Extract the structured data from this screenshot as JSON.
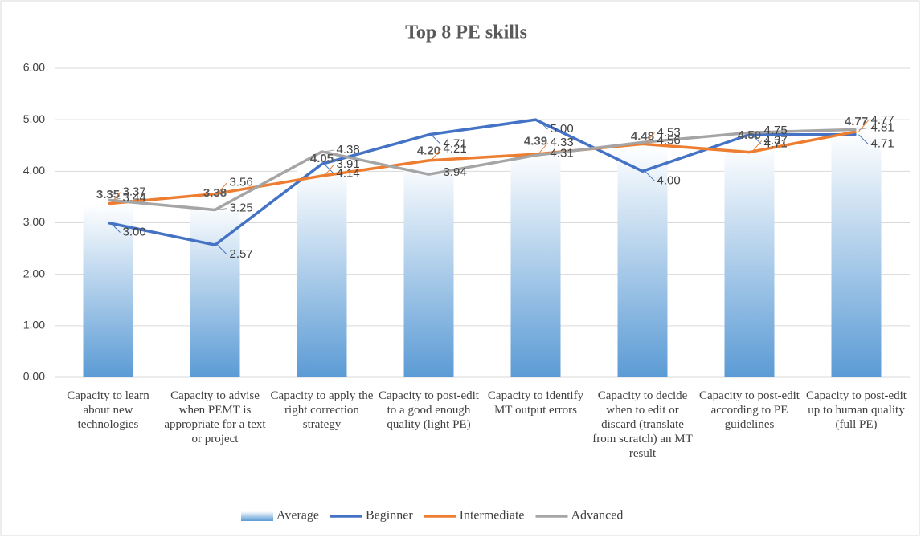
{
  "chart_data": {
    "type": "bar_line",
    "title": "Top 8 PE skills",
    "categories": [
      "Capacity to learn about new technologies",
      "Capacity to advise when PEMT is appropriate for a text or project",
      "Capacity to apply the right correction strategy",
      "Capacity to post-edit to a good enough quality (light PE)",
      "Capacity to identify MT output errors",
      "Capacity to decide when to edit or discard (translate from scratch) an MT result",
      "Capacity to post-edit according to PE guidelines",
      "Capacity to post-edit up to human quality (full PE)"
    ],
    "series": [
      {
        "name": "Average",
        "type": "bar",
        "color": "#5b9bd5",
        "values": [
          3.35,
          3.38,
          4.05,
          4.2,
          4.39,
          4.48,
          4.5,
          4.77
        ],
        "value_labels": [
          "3.35",
          "3.38",
          "4.05",
          "4.20",
          "4.39",
          "4.48",
          "4.50",
          "4.77"
        ]
      },
      {
        "name": "Beginner",
        "type": "line",
        "color": "#4472c4",
        "values": [
          3,
          2.57,
          4.14,
          4.71,
          5,
          4,
          4.71,
          4.71
        ],
        "value_labels": [
          "3.00",
          "2.57",
          "4.14",
          "4.71",
          "5.00",
          "4.00",
          "4.71",
          "4.71"
        ]
      },
      {
        "name": "Intermediate",
        "type": "line",
        "color": "#ed7d31",
        "values": [
          3.37,
          3.56,
          3.91,
          4.21,
          4.33,
          4.53,
          4.37,
          4.77
        ],
        "value_labels": [
          "3.37",
          "3.56",
          "3.91",
          "4.21",
          "4.33",
          "4.53",
          "4.37",
          "4.77"
        ]
      },
      {
        "name": "Advanced",
        "type": "line",
        "color": "#a5a5a5",
        "values": [
          3.44,
          3.25,
          4.38,
          3.94,
          4.31,
          4.56,
          4.75,
          4.81
        ],
        "value_labels": [
          "3.44",
          "3.25",
          "4.38",
          "3.94",
          "4.31",
          "4.56",
          "4.75",
          "4.81"
        ]
      }
    ],
    "ylim": [
      0,
      6
    ],
    "yticks": [
      {
        "value": 0,
        "label": "0.00"
      },
      {
        "value": 1,
        "label": "1.00"
      },
      {
        "value": 2,
        "label": "2.00"
      },
      {
        "value": 3,
        "label": "3.00"
      },
      {
        "value": 4,
        "label": "4.00"
      },
      {
        "value": 5,
        "label": "5.00"
      },
      {
        "value": 6,
        "label": "6.00"
      }
    ],
    "grid": true,
    "legend": "bottom"
  }
}
